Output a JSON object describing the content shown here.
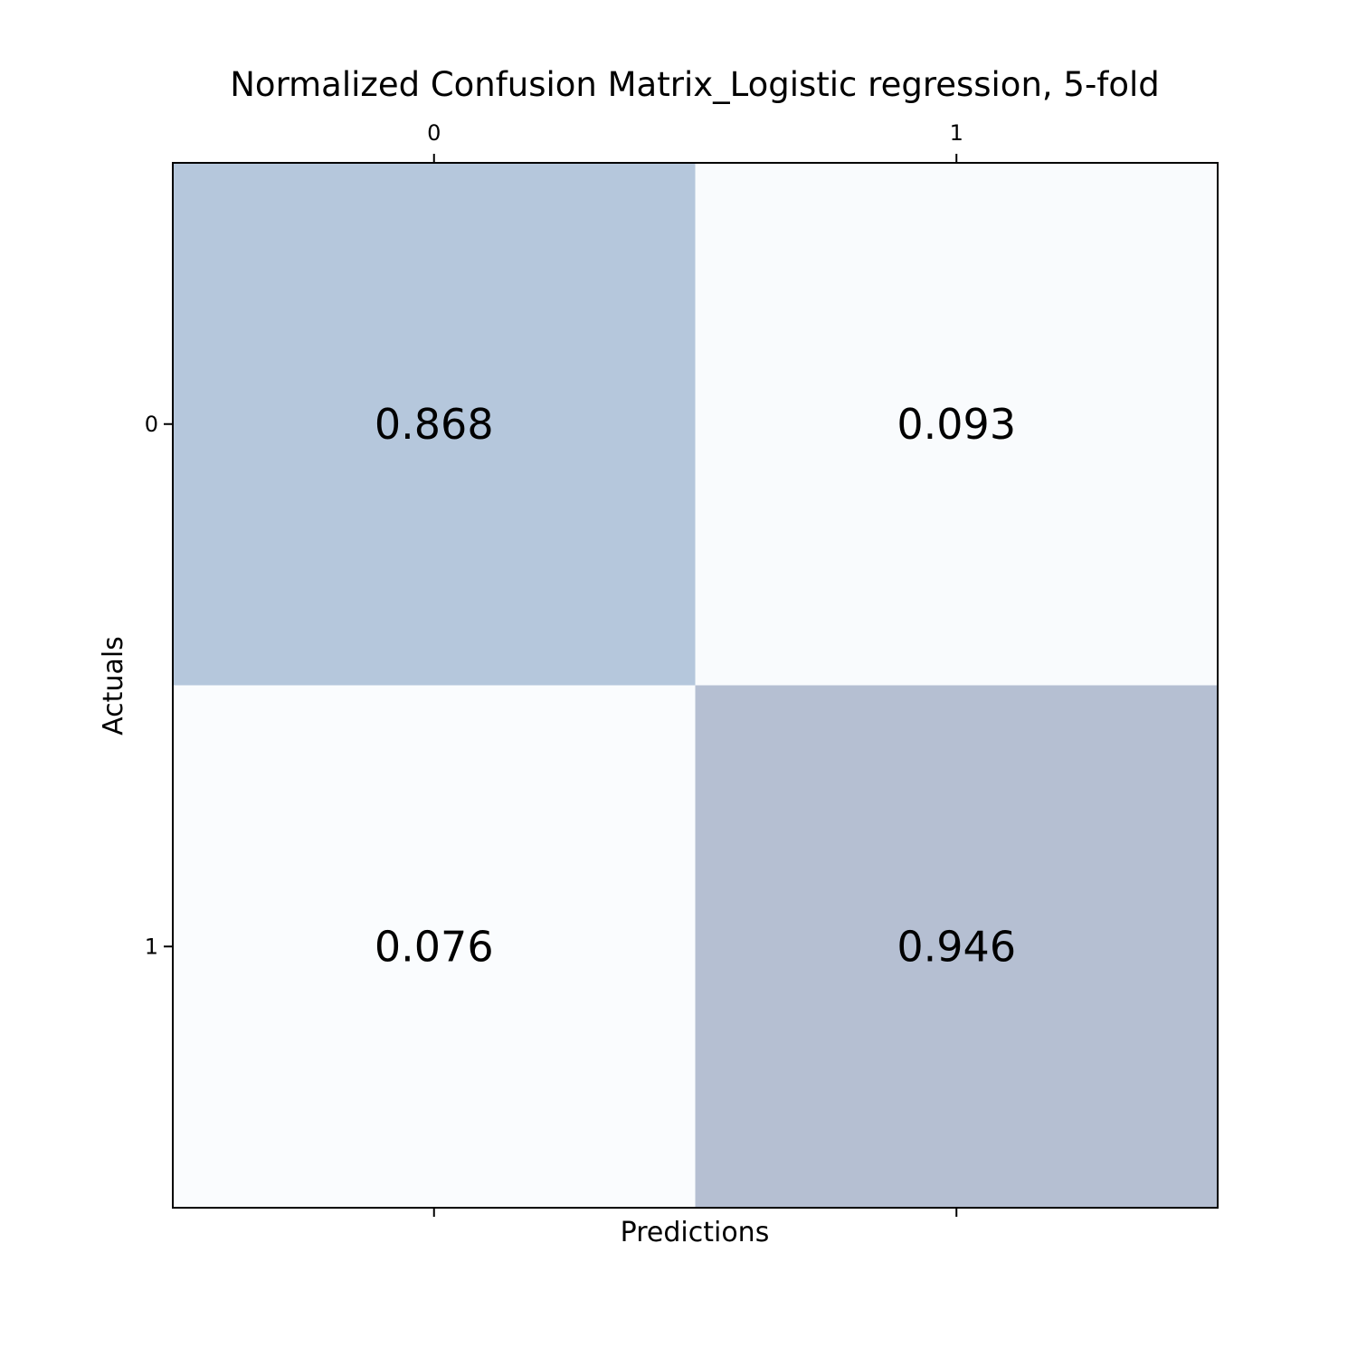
{
  "chart_data": {
    "type": "heatmap",
    "title": "Normalized Confusion Matrix_Logistic regression, 5-fold",
    "xlabel": "Predictions",
    "ylabel": "Actuals",
    "x_tick_labels": [
      "0",
      "1"
    ],
    "y_tick_labels": [
      "0",
      "1"
    ],
    "x_ticks_position": "top-and-bottom (labels on top)",
    "matrix": [
      [
        "0.868",
        "0.093"
      ],
      [
        "0.076",
        "0.946"
      ]
    ],
    "colormap": "light blue-gray, darker for higher values",
    "cell_colors": [
      [
        "#b5c7dc",
        "#f9fbfd"
      ],
      [
        "#fafcfe",
        "#b5bfd2"
      ]
    ],
    "grid": false,
    "legend": "none"
  }
}
